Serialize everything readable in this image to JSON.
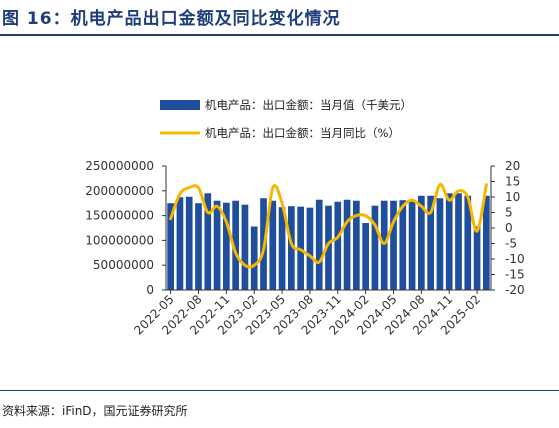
{
  "title": "图 16：机电产品出口金额及同比变化情况",
  "source": "资料来源：iFinD，国元证券研究所",
  "colors": {
    "bar": "#1f4e9c",
    "line": "#f5b800",
    "title": "#1f3d7a"
  },
  "chart_data": {
    "type": "bar",
    "legend": [
      "机电产品：出口金额：当月值（千美元）",
      "机电产品：出口金额：当月同比（%）"
    ],
    "legend_position": "top-center",
    "grid": false,
    "xlabel": "",
    "ylabel": "",
    "x": [
      "2022-05",
      "2022-06",
      "2022-07",
      "2022-08",
      "2022-09",
      "2022-10",
      "2022-11",
      "2022-12",
      "2023-01",
      "2023-02",
      "2023-03",
      "2023-04",
      "2023-05",
      "2023-06",
      "2023-07",
      "2023-08",
      "2023-09",
      "2023-10",
      "2023-11",
      "2023-12",
      "2024-01",
      "2024-02",
      "2024-03",
      "2024-04",
      "2024-05",
      "2024-06",
      "2024-07",
      "2024-08",
      "2024-09",
      "2024-10",
      "2024-11",
      "2024-12",
      "2025-01",
      "2025-02",
      "2025-03"
    ],
    "x_tick_labels": [
      "2022-05",
      "2022-08",
      "2022-11",
      "2023-02",
      "2023-05",
      "2023-08",
      "2023-11",
      "2024-02",
      "2024-05",
      "2024-08",
      "2024-11",
      "2025-02"
    ],
    "y_left": {
      "ticks": [
        0,
        50000000,
        100000000,
        150000000,
        200000000,
        250000000
      ],
      "ylim": [
        0,
        250000000
      ]
    },
    "y_right": {
      "ticks": [
        -20,
        -15,
        -10,
        -5,
        0,
        5,
        10,
        15,
        20
      ],
      "ylim": [
        -20,
        20
      ]
    },
    "series": [
      {
        "name": "机电产品：出口金额：当月值（千美元）",
        "type": "bar",
        "axis": "left",
        "values": [
          175000000,
          187000000,
          188000000,
          175000000,
          195000000,
          180000000,
          176000000,
          180000000,
          172000000,
          128000000,
          185000000,
          180000000,
          167000000,
          169000000,
          168000000,
          166000000,
          182000000,
          170000000,
          178000000,
          182000000,
          180000000,
          135000000,
          170000000,
          180000000,
          180000000,
          181000000,
          180000000,
          190000000,
          190000000,
          185000000,
          195000000,
          195000000,
          190000000,
          128000000,
          190000000
        ]
      },
      {
        "name": "机电产品：出口金额：当月同比（%）",
        "type": "line",
        "axis": "right",
        "values": [
          3,
          11,
          13,
          13,
          5,
          7,
          2,
          -8,
          -12,
          -12,
          -7,
          13,
          8,
          -5,
          -7,
          -9,
          -11,
          -5,
          -3,
          2,
          4,
          4,
          1,
          -5,
          2,
          7,
          9,
          7,
          5,
          14,
          9,
          12,
          10,
          -1,
          14
        ]
      }
    ]
  }
}
